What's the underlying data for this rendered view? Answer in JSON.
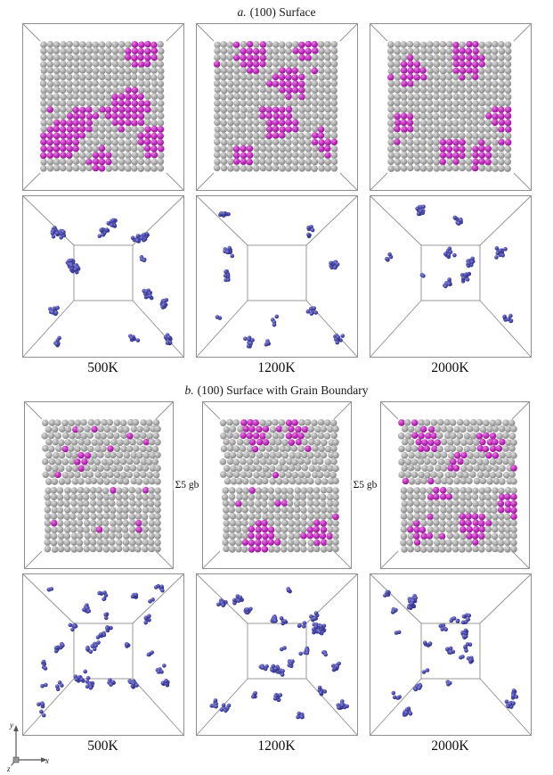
{
  "figure": {
    "panel_a": {
      "prefix": "a.",
      "title": "(100) Surface",
      "temps": [
        "500K",
        "1200K",
        "2000K"
      ]
    },
    "panel_b": {
      "prefix": "b.",
      "title": "(100) Surface with Grain Boundary",
      "gb_label": "Σ5 gb",
      "temps": [
        "500K",
        "1200K",
        "2000K"
      ]
    },
    "axes": {
      "x": "x",
      "y": "y",
      "z": "z"
    },
    "colors": {
      "frame": "#8f8f8f",
      "atom_gray": {
        "light": "#dedede",
        "mid": "#a8a8a8",
        "dark": "#787878"
      },
      "atom_magenta": {
        "light": "#ea7fe0",
        "mid": "#b92cb9",
        "dark": "#83107f"
      },
      "atom_blue": {
        "light": "#8f8fd8",
        "mid": "#4646ac",
        "dark": "#27276e"
      },
      "background": "#ffffff"
    }
  }
}
